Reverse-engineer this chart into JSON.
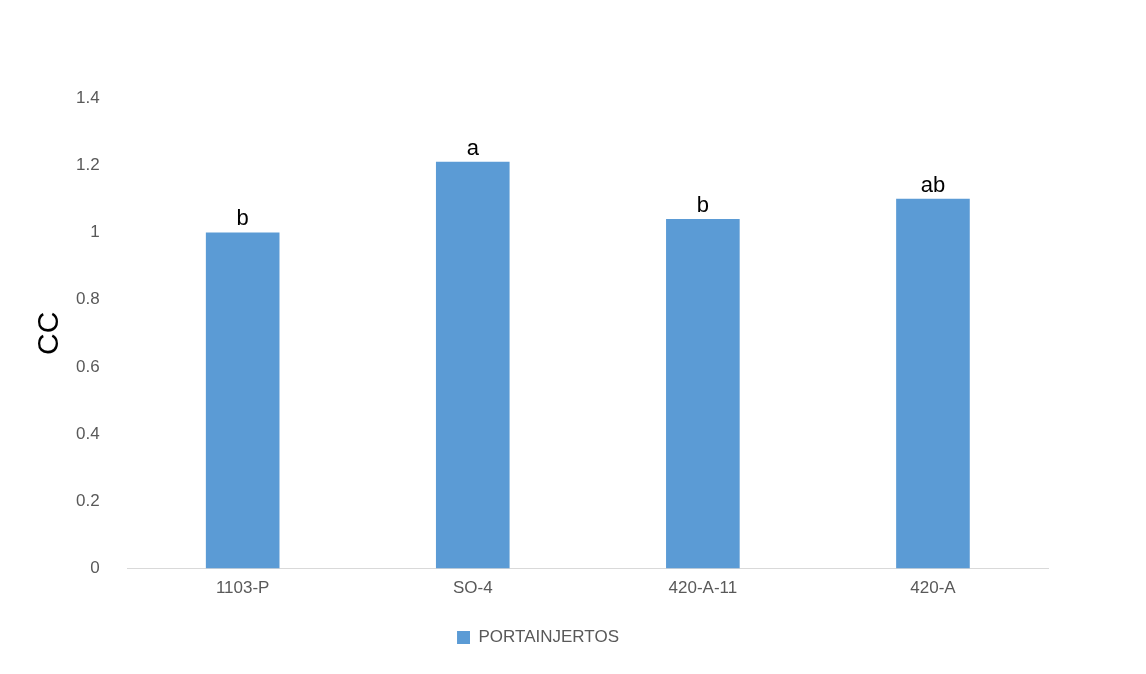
{
  "chart_data": {
    "type": "bar",
    "ylabel": "CC",
    "categories": [
      "1103-P",
      "SO-4",
      "420-A-11",
      "420-A"
    ],
    "series": [
      {
        "name": "PORTAINJERTOS",
        "color": "#5b9bd5",
        "values": [
          1.0,
          1.21,
          1.04,
          1.1
        ]
      }
    ],
    "ylim": [
      0,
      1.4
    ],
    "yticks": [
      0,
      0.2,
      0.4,
      0.6,
      0.8,
      1,
      1.2,
      1.4
    ],
    "grid": false,
    "legend": "bottom",
    "annotations": [
      {
        "text": "b",
        "x": "1103-P",
        "y": 1.0
      },
      {
        "text": "a",
        "x": "SO-4",
        "y": 1.21
      },
      {
        "text": "b",
        "x": "420-A-11",
        "y": 1.04
      },
      {
        "text": "ab",
        "x": "420-A",
        "y": 1.1
      }
    ]
  }
}
